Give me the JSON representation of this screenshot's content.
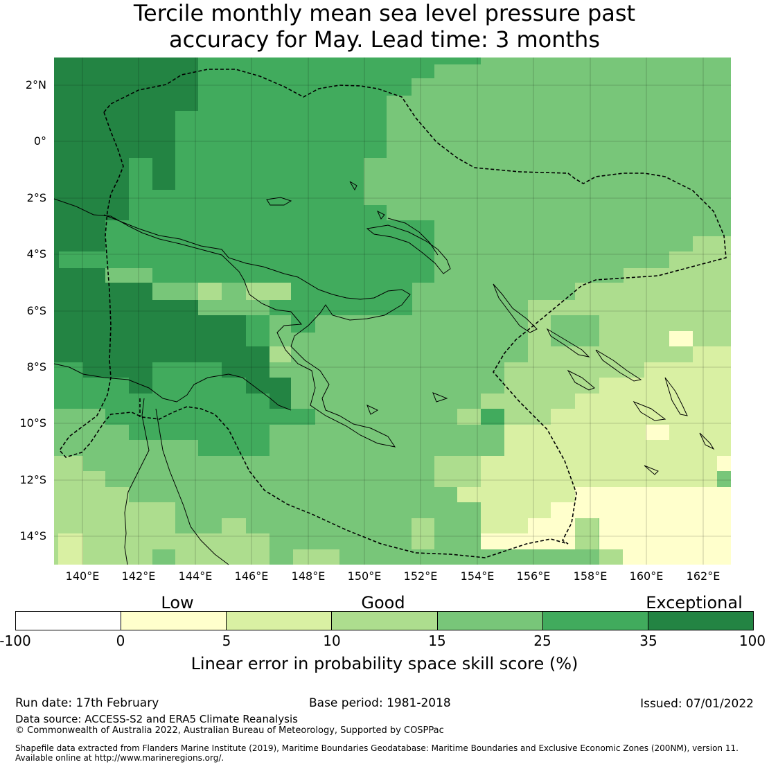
{
  "title": {
    "line1": "Tercile monthly mean sea level pressure past",
    "line2": "accuracy for May. Lead time: 3 months"
  },
  "axes": {
    "lat_labels": [
      "2°N",
      "0°",
      "2°S",
      "4°S",
      "6°S",
      "8°S",
      "10°S",
      "12°S",
      "14°S"
    ],
    "lon_labels": [
      "140°E",
      "142°E",
      "144°E",
      "146°E",
      "148°E",
      "150°E",
      "152°E",
      "154°E",
      "156°E",
      "158°E",
      "160°E",
      "162°E"
    ]
  },
  "legend": {
    "categories": [
      "Low",
      "Good",
      "Exceptional"
    ],
    "ticks": [
      "-100",
      "0",
      "5",
      "10",
      "15",
      "25",
      "35",
      "100"
    ],
    "colors": [
      "#ffffff",
      "#ffffcc",
      "#d9f0a3",
      "#addd8e",
      "#78c679",
      "#41ab5d",
      "#238443"
    ],
    "label": "Linear error in probability space skill score (%)"
  },
  "map_colors": {
    "exceptional": "#238443",
    "very_good": "#41ab5d",
    "good": "#78c679",
    "moderate": "#addd8e",
    "fair": "#d9f0a3",
    "low": "#ffffcc"
  },
  "footer": {
    "run_date": "Run date: 17th February",
    "base_period": "Base period: 1981-2018",
    "issued": "Issued: 07/01/2022",
    "data_source": "Data source: ACCESS-S2 and ERA5 Climate Reanalysis",
    "copyright": "© Commonwealth of Australia 2022, Australian Bureau of Meteorology, Supported by COSPPac",
    "shapefile_line1": "Shapefile data extracted from Flanders Marine Institute (2019), Maritime Boundaries Geodatabase: Maritime Boundaries and Exclusive Economic Zones (200NM), version 11.",
    "shapefile_line2": "Available online at http://www.marineregions.org/."
  }
}
